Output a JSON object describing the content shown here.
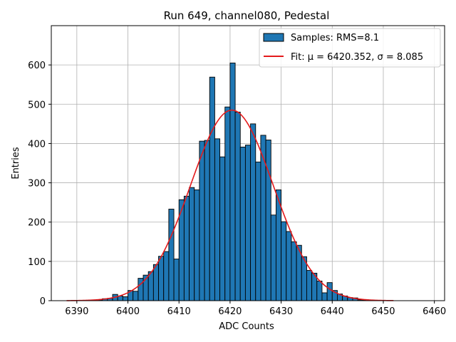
{
  "chart_data": {
    "type": "bar",
    "title": "Run 649, channel080, Pedestal",
    "xlabel": "ADC Counts",
    "ylabel": "Entries",
    "xlim": [
      6385,
      6462
    ],
    "ylim": [
      0,
      700
    ],
    "xticks": [
      6390,
      6400,
      6410,
      6420,
      6430,
      6440,
      6450,
      6460
    ],
    "yticks": [
      0,
      100,
      200,
      300,
      400,
      500,
      600
    ],
    "grid": true,
    "legend_position": "top-right",
    "bin_width": 1,
    "bin_start": 6390,
    "histogram": {
      "name": "Samples: RMS=8.1",
      "color": "#1f77b4",
      "counts": [
        0,
        0,
        0,
        0,
        2,
        5,
        6,
        16,
        12,
        10,
        26,
        24,
        57,
        65,
        74,
        92,
        113,
        125,
        233,
        106,
        257,
        266,
        288,
        282,
        406,
        408,
        569,
        412,
        366,
        493,
        605,
        480,
        391,
        396,
        450,
        353,
        421,
        409,
        218,
        282,
        201,
        176,
        150,
        141,
        112,
        77,
        70,
        50,
        20,
        46,
        26,
        17,
        12,
        8,
        7,
        2,
        1,
        1
      ]
    },
    "fit": {
      "name": "Fit: μ = 6420.352, σ = 8.085",
      "color": "#e41a1c",
      "type": "gaussian",
      "mu": 6420.352,
      "sigma": 8.085,
      "amplitude": 485,
      "x_range": [
        6388,
        6452
      ]
    }
  }
}
